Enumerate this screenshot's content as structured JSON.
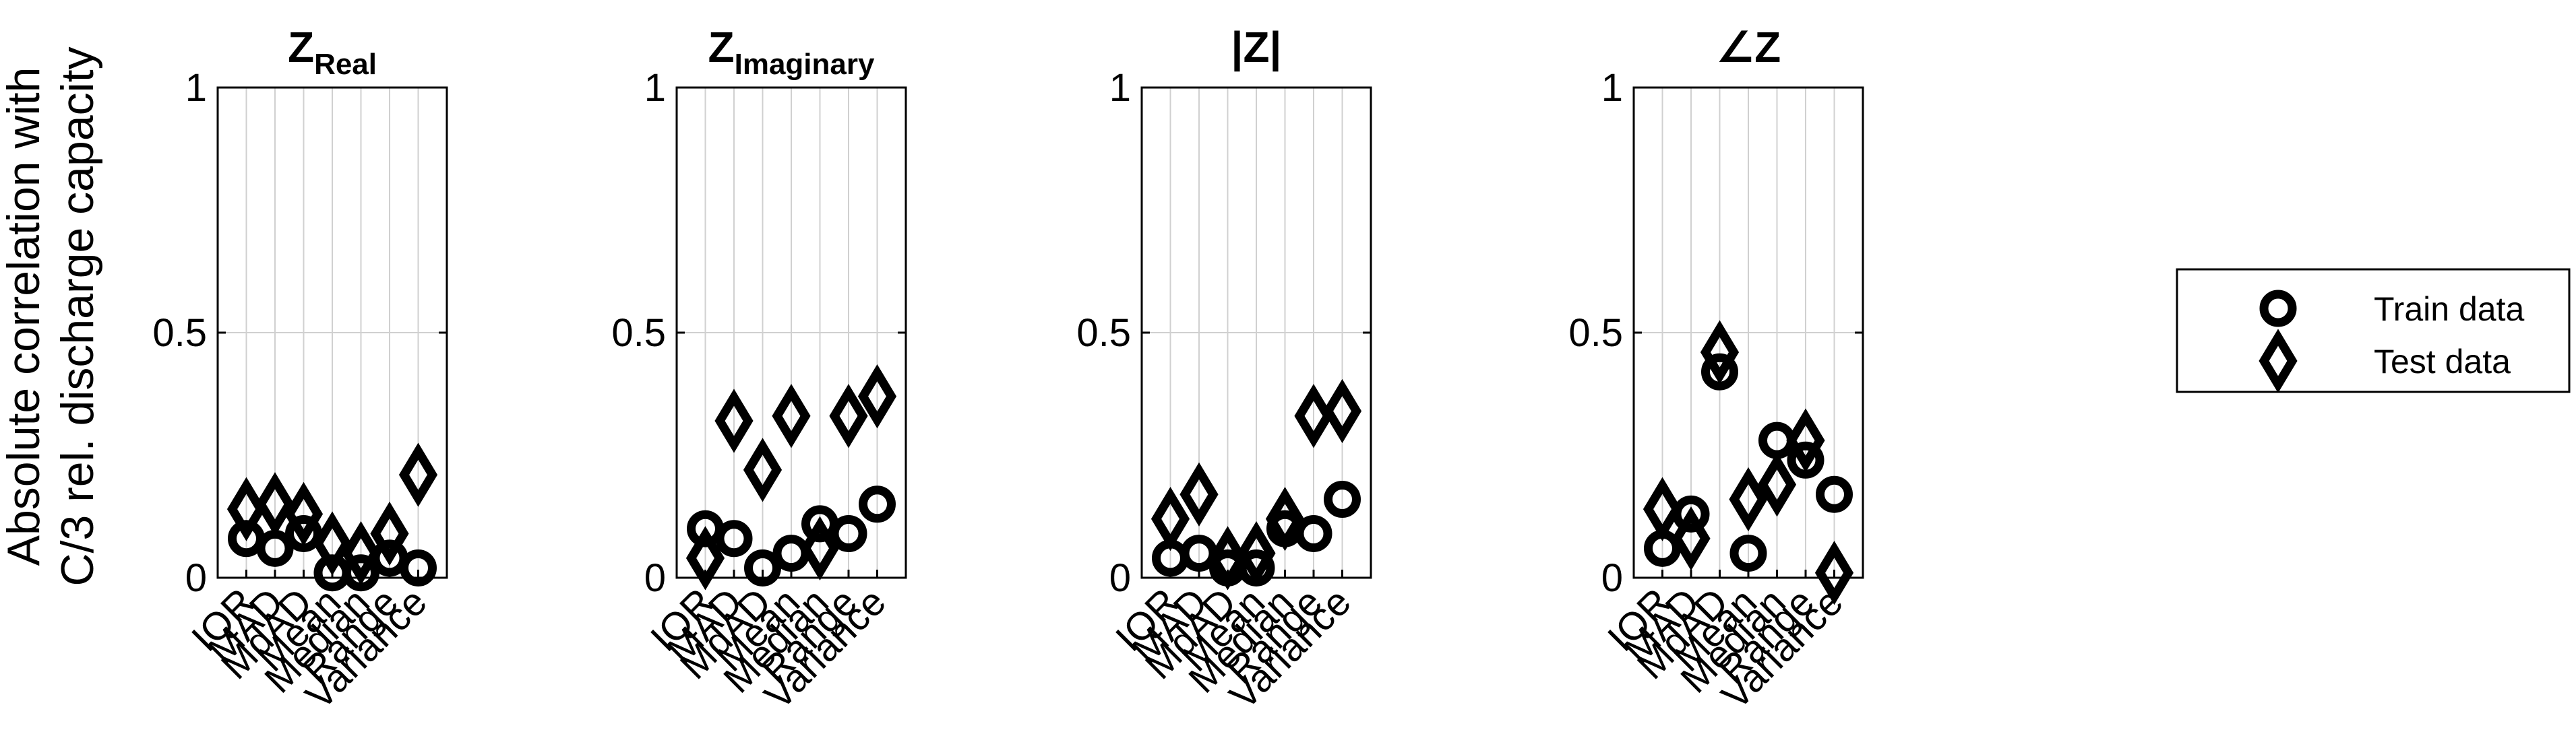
{
  "chart_data": {
    "type": "scatter",
    "ylabel": [
      "Absolute correlation with",
      "C/3 rel. discharge capacity"
    ],
    "ylim": [
      0,
      1
    ],
    "yticks": [
      0,
      0.5,
      1
    ],
    "ytick_labels": [
      "0",
      "0.5",
      "1"
    ],
    "grid": true,
    "categories": [
      "IQR",
      "MAD",
      "MdAD",
      "Mean",
      "Median",
      "Range",
      "Variance"
    ],
    "legend": {
      "placement": "right",
      "entries": [
        {
          "label": "Train data",
          "marker": "circle"
        },
        {
          "label": "Test data",
          "marker": "diamond"
        }
      ]
    },
    "panels": [
      {
        "title_main": "Z",
        "title_sub": "Real",
        "series": [
          {
            "name": "Train data",
            "marker": "circle",
            "values": [
              0.08,
              0.06,
              0.09,
              0.01,
              0.01,
              0.04,
              0.02
            ]
          },
          {
            "name": "Test data",
            "marker": "diamond",
            "values": [
              0.14,
              0.15,
              0.13,
              0.07,
              0.05,
              0.09,
              0.21
            ]
          }
        ]
      },
      {
        "title_main": "Z",
        "title_sub": "Imaginary",
        "series": [
          {
            "name": "Train data",
            "marker": "circle",
            "values": [
              0.1,
              0.08,
              0.02,
              0.05,
              0.11,
              0.09,
              0.15
            ]
          },
          {
            "name": "Test data",
            "marker": "diamond",
            "values": [
              0.04,
              0.32,
              0.22,
              0.33,
              0.06,
              0.33,
              0.37
            ]
          }
        ]
      },
      {
        "title_main": "|Z|",
        "title_sub": "",
        "series": [
          {
            "name": "Train data",
            "marker": "circle",
            "values": [
              0.04,
              0.05,
              0.02,
              0.02,
              0.1,
              0.09,
              0.16
            ]
          },
          {
            "name": "Test data",
            "marker": "diamond",
            "values": [
              0.12,
              0.17,
              0.04,
              0.05,
              0.12,
              0.33,
              0.34
            ]
          }
        ]
      },
      {
        "title_main": "∠Z",
        "title_sub": "",
        "series": [
          {
            "name": "Train data",
            "marker": "circle",
            "values": [
              0.06,
              0.13,
              0.42,
              0.05,
              0.28,
              0.24,
              0.17
            ]
          },
          {
            "name": "Test data",
            "marker": "diamond",
            "values": [
              0.14,
              0.08,
              0.46,
              0.16,
              0.19,
              0.28,
              0.01
            ]
          }
        ]
      }
    ]
  }
}
